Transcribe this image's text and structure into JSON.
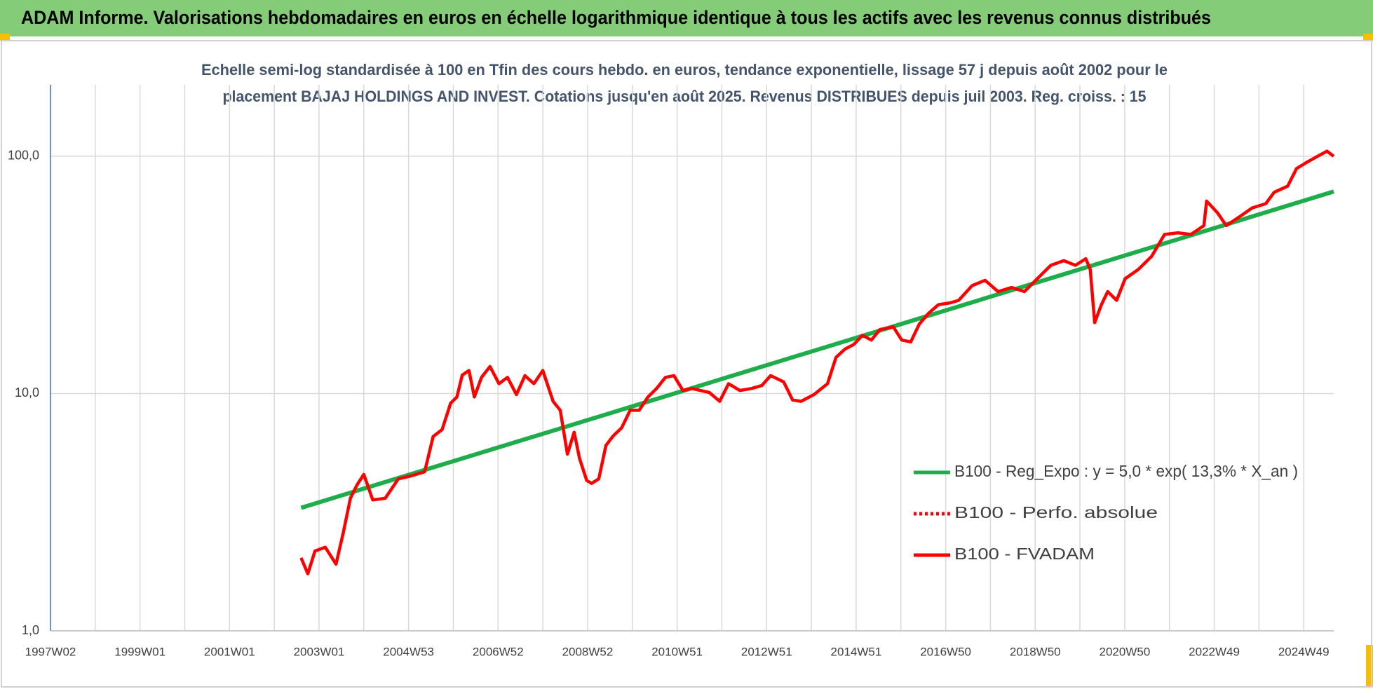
{
  "chart_data": {
    "type": "line",
    "header": "ADAM Informe. Valorisations hebdomadaires en euros en échelle logarithmique identique à tous les actifs avec les revenus connus distribués",
    "title": [
      "Echelle semi-log standardisée à 100 en Tfin des cours hebdo. en euros, tendance exponentielle, lissage 57 j depuis août 2002 pour le",
      "placement BAJAJ HOLDINGS AND INVEST. Cotations jusqu'en août 2025. Revenus DISTRIBUES depuis juil 2003. Reg. croiss. : 15"
    ],
    "log_y": true,
    "grid": true,
    "legend": "right",
    "xlim": [
      1997,
      2025.67
    ],
    "xticks": [
      {
        "value": 1997,
        "label": "1997W02"
      },
      {
        "value": 1999,
        "label": "1999W01"
      },
      {
        "value": 2001,
        "label": "2001W01"
      },
      {
        "value": 2003,
        "label": "2003W01"
      },
      {
        "value": 2005,
        "label": "2004W53"
      },
      {
        "value": 2007,
        "label": "2006W52"
      },
      {
        "value": 2009,
        "label": "2008W52"
      },
      {
        "value": 2011,
        "label": "2010W51"
      },
      {
        "value": 2013,
        "label": "2012W51"
      },
      {
        "value": 2015,
        "label": "2014W51"
      },
      {
        "value": 2017,
        "label": "2016W50"
      },
      {
        "value": 2019,
        "label": "2018W50"
      },
      {
        "value": 2021,
        "label": "2020W50"
      },
      {
        "value": 2023,
        "label": "2022W49"
      },
      {
        "value": 2025,
        "label": "2024W49"
      }
    ],
    "ylim": [
      1,
      200
    ],
    "yticks": [
      {
        "value": 1,
        "label": "1,0"
      },
      {
        "value": 10,
        "label": "10,0"
      },
      {
        "value": 100,
        "label": "100,0"
      }
    ],
    "series": [
      {
        "name": "B100 - Reg_Expo : y = 5,0 * exp( 13,3% *  X_an )",
        "color": "#1fad4b",
        "x": [
          2002.6,
          2025.67
        ],
        "values": [
          3.3,
          71
        ]
      },
      {
        "name": "B100 - Perfo. absolue",
        "color": "#ff0000",
        "dashed": true
      },
      {
        "name": "B100 - FVADAM",
        "color": "#ff0000",
        "x": [
          2002.6,
          2002.75,
          2002.91,
          2003.14,
          2003.38,
          2003.54,
          2003.7,
          2003.85,
          2004.0,
          2004.2,
          2004.48,
          2004.77,
          2005.06,
          2005.36,
          2005.55,
          2005.75,
          2005.94,
          2006.08,
          2006.2,
          2006.35,
          2006.47,
          2006.63,
          2006.82,
          2007.02,
          2007.21,
          2007.41,
          2007.6,
          2007.8,
          2008.0,
          2008.23,
          2008.39,
          2008.55,
          2008.7,
          2008.82,
          2008.98,
          2009.09,
          2009.25,
          2009.41,
          2009.56,
          2009.76,
          2009.95,
          2010.15,
          2010.35,
          2010.54,
          2010.74,
          2010.93,
          2011.13,
          2011.33,
          2011.52,
          2011.72,
          2011.95,
          2012.15,
          2012.4,
          2012.66,
          2012.89,
          2013.09,
          2013.38,
          2013.58,
          2013.77,
          2014.06,
          2014.36,
          2014.55,
          2014.75,
          2014.95,
          2015.14,
          2015.34,
          2015.53,
          2015.83,
          2016.02,
          2016.22,
          2016.41,
          2016.61,
          2016.84,
          2017.1,
          2017.29,
          2017.59,
          2017.88,
          2018.17,
          2018.47,
          2018.76,
          2019.05,
          2019.35,
          2019.64,
          2019.9,
          2020.13,
          2020.23,
          2020.33,
          2020.48,
          2020.62,
          2020.82,
          2021.01,
          2021.3,
          2021.6,
          2021.89,
          2022.19,
          2022.48,
          2022.77,
          2022.83,
          2023.07,
          2023.27,
          2023.56,
          2023.85,
          2024.15,
          2024.34,
          2024.64,
          2024.84,
          2025.07,
          2025.33,
          2025.52,
          2025.67
        ],
        "values": [
          2.03,
          1.74,
          2.17,
          2.25,
          1.91,
          2.58,
          3.62,
          4.12,
          4.56,
          3.56,
          3.62,
          4.37,
          4.5,
          4.68,
          6.59,
          7.05,
          9.1,
          9.67,
          11.96,
          12.5,
          9.67,
          11.7,
          13.0,
          11.0,
          11.7,
          9.9,
          11.9,
          11.0,
          12.5,
          9.27,
          8.5,
          5.55,
          6.87,
          5.32,
          4.3,
          4.18,
          4.37,
          6.04,
          6.59,
          7.17,
          8.5,
          8.5,
          9.67,
          10.5,
          11.7,
          11.9,
          10.3,
          10.5,
          10.3,
          10.1,
          9.27,
          11.0,
          10.3,
          10.5,
          10.8,
          11.9,
          11.2,
          9.4,
          9.27,
          9.9,
          11.0,
          14.2,
          15.4,
          16.1,
          17.6,
          16.8,
          18.6,
          19.1,
          16.8,
          16.5,
          19.6,
          21.7,
          23.7,
          24.1,
          24.7,
          28.5,
          30.0,
          26.9,
          28.0,
          26.9,
          30.5,
          34.7,
          36.3,
          34.7,
          37.0,
          33.3,
          19.9,
          23.7,
          26.9,
          24.7,
          30.5,
          33.3,
          37.8,
          46.8,
          47.6,
          46.8,
          51.0,
          64.7,
          57.9,
          51.0,
          55.5,
          60.6,
          63.1,
          70.5,
          74.8,
          88.8,
          94.3,
          100.5,
          105,
          100
        ]
      }
    ]
  }
}
